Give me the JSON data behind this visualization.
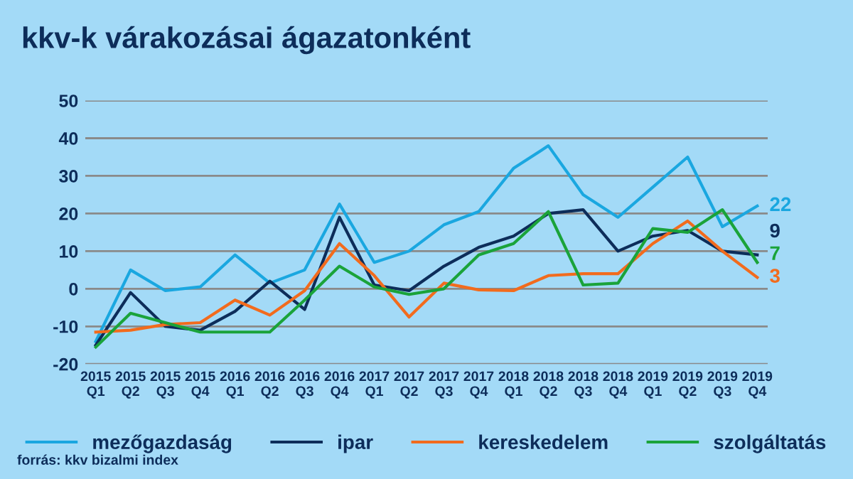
{
  "chart_data": {
    "type": "line",
    "title": "kkv-k várakozásai ágazatonként",
    "categories": [
      "2015\nQ1",
      "2015\nQ2",
      "2015\nQ3",
      "2015\nQ4",
      "2016\nQ1",
      "2016\nQ2",
      "2016\nQ3",
      "2016\nQ4",
      "2017\nQ1",
      "2017\nQ2",
      "2017\nQ3",
      "2017\nQ4",
      "2018\nQ1",
      "2018\nQ2",
      "2018\nQ3",
      "2018\nQ4",
      "2019\nQ1",
      "2019\nQ2",
      "2019\nQ3",
      "2019\nQ4"
    ],
    "series": [
      {
        "name": "mezőgazdaság",
        "color": "#1aa7e0",
        "values": [
          -14,
          5,
          -0.5,
          0.5,
          9,
          1.5,
          5,
          22.5,
          7,
          10,
          17,
          20.5,
          32,
          38,
          25,
          19,
          27,
          35,
          16.5,
          22
        ],
        "value_labels": [
          null,
          null,
          null,
          null,
          null,
          null,
          null,
          null,
          null,
          null,
          null,
          null,
          null,
          null,
          null,
          null,
          null,
          null,
          null,
          "22"
        ]
      },
      {
        "name": "ipar",
        "color": "#0d2d5a",
        "values": [
          -15,
          -1,
          -10,
          -11,
          -6,
          2,
          -5.5,
          19,
          1,
          -0.5,
          6,
          11,
          14,
          20,
          21,
          10,
          14,
          15.5,
          10,
          9
        ],
        "value_labels": [
          null,
          null,
          null,
          null,
          null,
          null,
          null,
          null,
          null,
          null,
          null,
          null,
          null,
          null,
          null,
          null,
          null,
          null,
          null,
          "9"
        ]
      },
      {
        "name": "kereskedelem",
        "color": "#f26b1d",
        "values": [
          -11.5,
          -11,
          -9.5,
          -9,
          -3,
          -7,
          -0.5,
          12,
          3.5,
          -7.5,
          1.5,
          -0.3,
          -0.5,
          3.5,
          4,
          4,
          12,
          18,
          10,
          3
        ],
        "value_labels": [
          null,
          null,
          null,
          null,
          null,
          null,
          null,
          null,
          null,
          null,
          null,
          null,
          null,
          null,
          null,
          null,
          null,
          null,
          null,
          "3"
        ]
      },
      {
        "name": "szolgáltatás",
        "color": "#1aa33a",
        "values": [
          -15.5,
          -6.5,
          -9,
          -11.5,
          -11.5,
          -11.5,
          -3,
          6,
          0.5,
          -1.5,
          0,
          9,
          12,
          20.5,
          1,
          1.5,
          16,
          15,
          21,
          7
        ],
        "value_labels": [
          null,
          null,
          null,
          null,
          null,
          null,
          null,
          null,
          null,
          null,
          null,
          null,
          null,
          null,
          null,
          null,
          null,
          null,
          null,
          "7"
        ]
      }
    ],
    "ylim": [
      -20,
      50
    ],
    "yticks": [
      -20,
      -10,
      0,
      10,
      20,
      30,
      40,
      50
    ],
    "grid": "y",
    "legend": "bottom",
    "marker": "none",
    "line_style": "solid",
    "annotations": [
      "forrás: kkv bizalmi index"
    ]
  }
}
